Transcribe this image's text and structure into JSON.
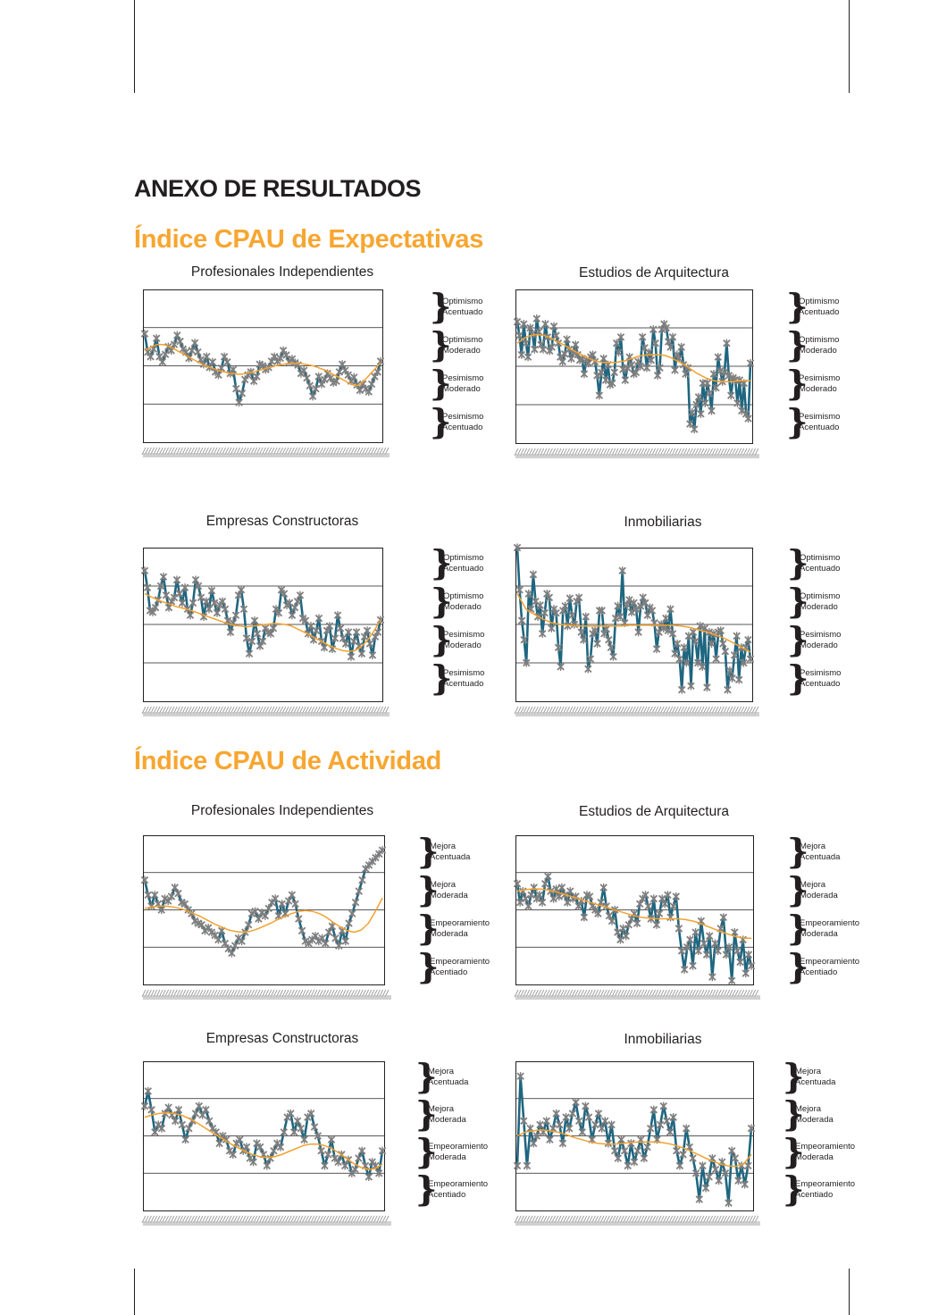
{
  "page_title": "ANEXO DE RESULTADOS",
  "sections": [
    {
      "title": "Índice CPAU de Expectativas",
      "levels": [
        "Optimismo\nAcentuado",
        "Optimismo\nModerado",
        "Pesimismo\nModerado",
        "Pesimismo\nAcentuado"
      ],
      "charts": [
        {
          "title": "Profesionales Independientes"
        },
        {
          "title": "Estudios de Arquitectura"
        },
        {
          "title": "Empresas Constructoras"
        },
        {
          "title": "Inmobiliarias"
        }
      ]
    },
    {
      "title": "Índice CPAU de Actividad",
      "levels": [
        "Mejora\nAcentuada",
        "Mejora\nModerada",
        "Empeoramiento\nModerada",
        "Empeoramiento\nAcentiado"
      ],
      "charts": [
        {
          "title": "Profesionales Independientes"
        },
        {
          "title": "Estudios de Arquitectura"
        },
        {
          "title": "Empresas Constructoras"
        },
        {
          "title": "Inmobiliarias"
        }
      ]
    }
  ],
  "chart_data": [
    {
      "type": "line",
      "title": "Profesionales Independientes",
      "ylim": [
        -100,
        100
      ],
      "grid": true,
      "series": [
        {
          "values": [
            42,
            18,
            12,
            22,
            36,
            12,
            5,
            15,
            25,
            20,
            28,
            40,
            32,
            22,
            18,
            10,
            20,
            30,
            18,
            8,
            2,
            12,
            -2,
            5,
            -8,
            -12,
            -3,
            12,
            5,
            -10,
            -5,
            -30,
            -48,
            -36,
            -18,
            -12,
            -8,
            -20,
            -14,
            2,
            0,
            -5,
            -2,
            6,
            12,
            6,
            10,
            20,
            14,
            5,
            9,
            4,
            1,
            -10,
            -6,
            -16,
            -26,
            -40,
            -30,
            -14,
            -24,
            -18,
            -10,
            -16,
            -22,
            -20,
            -8,
            2,
            -6,
            -12,
            -20,
            -15,
            -25,
            -32,
            -24,
            -30,
            -34,
            -24,
            -14,
            -8,
            6
          ]
        },
        {
          "values": [
            20,
            23,
            26,
            28,
            28,
            27,
            25,
            22,
            19,
            16,
            13,
            10,
            7,
            4,
            1,
            -1,
            -3,
            -5,
            -7,
            -8,
            -10,
            -10,
            -11,
            -11,
            -10,
            -9,
            -8,
            -6,
            -5,
            -3,
            -2,
            0,
            1,
            2,
            3,
            3,
            3,
            3,
            2,
            1,
            0,
            -2,
            -4,
            -6,
            -9,
            -12,
            -15,
            -18,
            -21,
            -24,
            -26,
            -25,
            -20,
            -14,
            -8,
            -2,
            4
          ]
        }
      ]
    },
    {
      "type": "line",
      "title": "Estudios de Arquitectura",
      "ylim": [
        -100,
        100
      ],
      "grid": true,
      "series": [
        {
          "values": [
            58,
            40,
            15,
            55,
            30,
            12,
            50,
            42,
            22,
            62,
            45,
            28,
            22,
            55,
            38,
            20,
            25,
            52,
            40,
            30,
            12,
            6,
            16,
            35,
            22,
            10,
            18,
            28,
            15,
            8,
            10,
            -10,
            8,
            4,
            12,
            15,
            6,
            -12,
            -38,
            -8,
            10,
            -18,
            2,
            -24,
            -22,
            -8,
            30,
            18,
            38,
            -4,
            -18,
            -2,
            12,
            2,
            -10,
            -8,
            6,
            0,
            38,
            24,
            -2,
            18,
            8,
            48,
            30,
            -12,
            -2,
            48,
            55,
            50,
            32,
            25,
            38,
            -5,
            15,
            10,
            25,
            2,
            -10,
            -2,
            -75,
            -60,
            -82,
            -50,
            -40,
            -62,
            -22,
            -48,
            -22,
            -35,
            -58,
            -10,
            -28,
            12,
            -6,
            -20,
            -8,
            30,
            -12,
            -38,
            -15,
            -18,
            -48,
            -18,
            -58,
            -22,
            -62,
            -68,
            4
          ]
        },
        {
          "values": [
            30,
            34,
            38,
            40,
            41,
            41,
            40,
            38,
            35,
            32,
            29,
            26,
            22,
            19,
            16,
            13,
            10,
            8,
            6,
            5,
            5,
            5,
            5,
            6,
            7,
            9,
            11,
            13,
            14,
            15,
            15,
            15,
            15,
            14,
            12,
            9,
            6,
            3,
            -1,
            -5,
            -9,
            -12,
            -15,
            -17,
            -19,
            -20,
            -20,
            -20,
            -20,
            -19,
            -19,
            -19,
            -19
          ]
        }
      ]
    },
    {
      "type": "line",
      "title": "Empresas Constructoras",
      "ylim": [
        -100,
        100
      ],
      "grid": true,
      "series": [
        {
          "values": [
            70,
            48,
            18,
            16,
            22,
            32,
            50,
            62,
            38,
            22,
            30,
            35,
            58,
            40,
            28,
            48,
            20,
            12,
            28,
            58,
            50,
            35,
            10,
            30,
            20,
            44,
            28,
            15,
            25,
            30,
            20,
            5,
            -10,
            2,
            12,
            38,
            45,
            20,
            -18,
            -38,
            -22,
            5,
            -12,
            -28,
            -22,
            -5,
            -10,
            -12,
            -5,
            20,
            15,
            45,
            40,
            25,
            28,
            12,
            22,
            30,
            38,
            8,
            5,
            -12,
            -2,
            -20,
            -8,
            8,
            -22,
            -30,
            -8,
            -2,
            -32,
            -18,
            12,
            -5,
            -18,
            -25,
            -10,
            -42,
            -22,
            -10,
            -28,
            -38,
            -16,
            -8,
            -25,
            -40,
            -16,
            -10,
            6
          ]
        },
        {
          "values": [
            40,
            36,
            32,
            29,
            26,
            23,
            21,
            19,
            16,
            13,
            10,
            7,
            4,
            1,
            -1,
            -2,
            -3,
            -2,
            -1,
            0,
            1,
            1,
            0,
            -2,
            -6,
            -10,
            -14,
            -19,
            -23,
            -28,
            -31,
            -34,
            -35,
            -34,
            -29,
            -20,
            -8,
            6
          ]
        }
      ]
    },
    {
      "type": "line",
      "title": "Inmobiliarias",
      "ylim": [
        -100,
        100
      ],
      "grid": true,
      "series": [
        {
          "values": [
            100,
            45,
            5,
            -20,
            -50,
            40,
            20,
            65,
            30,
            10,
            25,
            -12,
            15,
            40,
            35,
            -5,
            20,
            15,
            -30,
            -55,
            18,
            24,
            -2,
            34,
            12,
            0,
            30,
            35,
            -10,
            -20,
            10,
            -58,
            -45,
            -12,
            -8,
            -25,
            18,
            18,
            -12,
            -6,
            -20,
            -30,
            -42,
            8,
            24,
            10,
            70,
            2,
            26,
            32,
            16,
            28,
            20,
            -10,
            24,
            35,
            28,
            12,
            22,
            18,
            2,
            -32,
            -10,
            0,
            -5,
            8,
            -8,
            20,
            -12,
            -38,
            -25,
            -45,
            -85,
            -30,
            -50,
            -15,
            -80,
            -10,
            -22,
            -50,
            -2,
            -55,
            -5,
            -82,
            -10,
            -25,
            -12,
            -45,
            -10,
            -8,
            -25,
            -35,
            -85,
            -60,
            -70,
            -40,
            -15,
            -72,
            -30,
            -50,
            -30,
            -20,
            -45
          ]
        },
        {
          "values": [
            40,
            20,
            13,
            7,
            2,
            0,
            -1,
            -2,
            -2,
            -2,
            -2,
            -2,
            -2,
            -1,
            -1,
            -1,
            -1,
            -1,
            -1,
            -2,
            -4,
            -7,
            -10,
            -14,
            -18,
            -24,
            -30,
            -36
          ]
        }
      ]
    },
    {
      "type": "line",
      "title": "Profesionales Independientes",
      "ylim": [
        -100,
        100
      ],
      "grid": true,
      "series": [
        {
          "values": [
            40,
            20,
            5,
            20,
            8,
            0,
            15,
            12,
            18,
            30,
            22,
            10,
            8,
            0,
            -5,
            -15,
            -18,
            -20,
            -28,
            -24,
            -30,
            -34,
            -40,
            -28,
            -45,
            -52,
            -58,
            -48,
            -38,
            -42,
            -30,
            -20,
            -5,
            -2,
            -12,
            -4,
            -8,
            2,
            10,
            15,
            -8,
            8,
            -5,
            12,
            20,
            8,
            -12,
            -28,
            -42,
            -45,
            -40,
            -35,
            -42,
            -38,
            -45,
            -30,
            -22,
            -38,
            -48,
            -28,
            -42,
            -18,
            -5,
            10,
            25,
            40,
            55,
            60,
            65,
            70,
            75,
            80
          ]
        },
        {
          "values": [
            2,
            4,
            5,
            5,
            4,
            2,
            -1,
            -5,
            -9,
            -14,
            -19,
            -23,
            -27,
            -29,
            -30,
            -29,
            -26,
            -22,
            -18,
            -13,
            -9,
            -5,
            -2,
            -1,
            -2,
            -5,
            -10,
            -17,
            -23,
            -28,
            -30,
            -27,
            -18,
            -2,
            16
          ]
        }
      ]
    },
    {
      "type": "line",
      "title": "Estudios de Arquitectura",
      "ylim": [
        -100,
        100
      ],
      "grid": true,
      "series": [
        {
          "values": [
            35,
            10,
            25,
            15,
            5,
            20,
            30,
            15,
            20,
            10,
            35,
            45,
            25,
            15,
            28,
            18,
            30,
            20,
            10,
            25,
            15,
            18,
            5,
            12,
            -10,
            20,
            18,
            5,
            0,
            -5,
            10,
            30,
            5,
            -8,
            -15,
            0,
            -30,
            -40,
            -25,
            -35,
            -20,
            -12,
            -5,
            -18,
            8,
            15,
            20,
            5,
            -12,
            15,
            -20,
            -5,
            15,
            8,
            20,
            -10,
            5,
            18,
            -25,
            -55,
            -80,
            -50,
            -40,
            -75,
            -30,
            -55,
            -15,
            -45,
            -60,
            -35,
            -90,
            -45,
            -55,
            -25,
            -10,
            -60,
            -50,
            -95,
            -30,
            -55,
            -70,
            -40,
            -85,
            -60,
            -75
          ]
        },
        {
          "values": [
            25,
            27,
            28,
            28,
            27,
            25,
            22,
            19,
            16,
            13,
            10,
            7,
            4,
            1,
            -2,
            -5,
            -8,
            -10,
            -11,
            -12,
            -12,
            -12,
            -12,
            -13,
            -15,
            -18,
            -22,
            -26,
            -30,
            -33,
            -36,
            -38,
            -38
          ]
        }
      ]
    },
    {
      "type": "line",
      "title": "Empresas Constructoras",
      "ylim": [
        -100,
        100
      ],
      "grid": true,
      "series": [
        {
          "values": [
            40,
            60,
            35,
            5,
            15,
            10,
            30,
            38,
            28,
            20,
            35,
            15,
            -5,
            10,
            20,
            30,
            40,
            28,
            35,
            20,
            10,
            5,
            -10,
            0,
            -5,
            -20,
            -25,
            -10,
            -5,
            -20,
            -15,
            -30,
            -35,
            -10,
            -15,
            -25,
            -40,
            -30,
            -20,
            -10,
            -15,
            5,
            25,
            30,
            5,
            20,
            10,
            -5,
            25,
            30,
            12,
            0,
            -20,
            -40,
            -25,
            -5,
            -30,
            -35,
            -25,
            -40,
            -32,
            -50,
            -45,
            -30,
            -20,
            -40,
            -55,
            -35,
            -40,
            -50,
            -20
          ]
        },
        {
          "values": [
            25,
            28,
            30,
            31,
            30,
            28,
            24,
            19,
            13,
            7,
            1,
            -5,
            -11,
            -16,
            -21,
            -25,
            -28,
            -29,
            -28,
            -25,
            -21,
            -17,
            -13,
            -11,
            -11,
            -13,
            -17,
            -23,
            -30,
            -37,
            -42,
            -45,
            -44,
            -38
          ]
        }
      ]
    },
    {
      "type": "line",
      "title": "Inmobiliarias",
      "ylim": [
        -100,
        100
      ],
      "grid": true,
      "series": [
        {
          "values": [
            -40,
            80,
            20,
            -40,
            10,
            -10,
            0,
            15,
            5,
            20,
            -5,
            10,
            30,
            15,
            -10,
            25,
            10,
            30,
            45,
            20,
            5,
            40,
            25,
            -5,
            15,
            30,
            10,
            20,
            -10,
            15,
            -20,
            -30,
            -5,
            -20,
            -40,
            -10,
            -35,
            -20,
            -5,
            -30,
            -15,
            10,
            35,
            -5,
            15,
            40,
            20,
            5,
            25,
            -20,
            -40,
            -25,
            10,
            -15,
            -30,
            -50,
            -85,
            -40,
            -70,
            -55,
            -30,
            -45,
            -60,
            -35,
            -50,
            -90,
            -20,
            -30,
            -60,
            -40,
            -65,
            -40,
            10
          ]
        },
        {
          "values": [
            0,
            5,
            7,
            8,
            7,
            5,
            2,
            -2,
            -5,
            -8,
            -10,
            -11,
            -11,
            -10,
            -9,
            -8,
            -8,
            -8,
            -9,
            -11,
            -14,
            -18,
            -23,
            -28,
            -33,
            -37,
            -40,
            -41,
            -38,
            -25
          ]
        }
      ]
    }
  ]
}
